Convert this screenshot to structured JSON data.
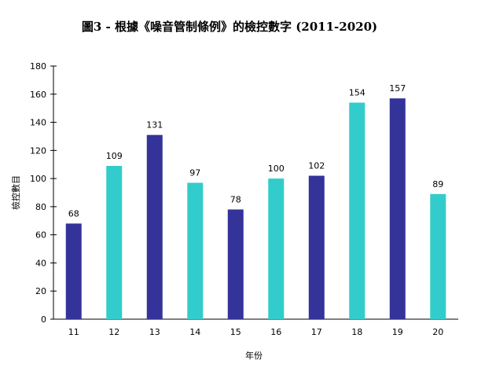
{
  "chart_data": {
    "type": "bar",
    "title": "圖3 - 根據《噪音管制條例》的檢控數字 (2011-2020)",
    "xlabel": "年份",
    "ylabel": "檢控數目",
    "categories": [
      "11",
      "12",
      "13",
      "14",
      "15",
      "16",
      "17",
      "18",
      "19",
      "20"
    ],
    "values": [
      68,
      109,
      131,
      97,
      78,
      100,
      102,
      154,
      157,
      89
    ],
    "ylim": [
      0,
      180
    ],
    "yticks": [
      0,
      20,
      40,
      60,
      80,
      100,
      120,
      140,
      160,
      180
    ],
    "grid": false,
    "legend": "none",
    "colors": [
      "#333399",
      "#33cccc"
    ]
  }
}
